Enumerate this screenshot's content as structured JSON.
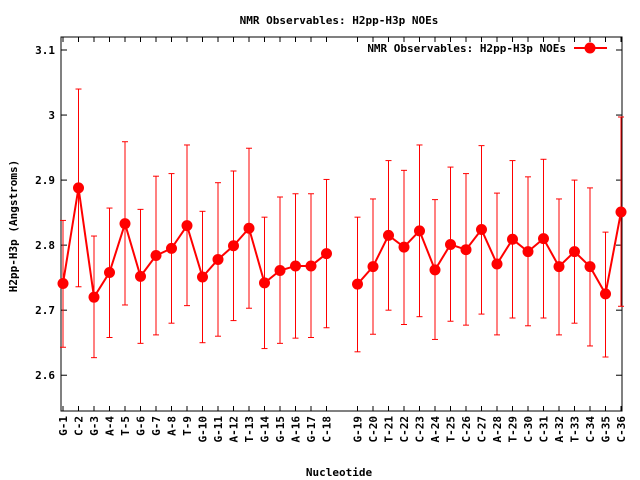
{
  "chart_data": {
    "type": "line",
    "title": "NMR Observables: H2pp-H3p NOEs",
    "xlabel": "Nucleotide",
    "ylabel": "H2pp-H3p (Angstroms)",
    "ylim": [
      2.545,
      3.12
    ],
    "y_ticks": [
      2.6,
      2.7,
      2.8,
      2.9,
      3,
      3.1
    ],
    "y_tick_labels": [
      "2.6",
      "2.7",
      "2.8",
      "2.9",
      "3",
      "3.1"
    ],
    "legend_position": "top-right",
    "grid": false,
    "error_bars": true,
    "series": [
      {
        "name": "NMR Observables: H2pp-H3p NOEs",
        "color": "#ff0000",
        "marker": "circle",
        "points": [
          {
            "x": 1,
            "label": "G-1",
            "y": 2.741,
            "low": 2.643,
            "high": 2.838
          },
          {
            "x": 2,
            "label": "C-2",
            "y": 2.888,
            "low": 2.736,
            "high": 3.04
          },
          {
            "x": 3,
            "label": "G-3",
            "y": 2.72,
            "low": 2.627,
            "high": 2.814
          },
          {
            "x": 4,
            "label": "A-4",
            "y": 2.758,
            "low": 2.658,
            "high": 2.857
          },
          {
            "x": 5,
            "label": "T-5",
            "y": 2.833,
            "low": 2.708,
            "high": 2.959
          },
          {
            "x": 6,
            "label": "G-6",
            "y": 2.752,
            "low": 2.649,
            "high": 2.855
          },
          {
            "x": 7,
            "label": "G-7",
            "y": 2.784,
            "low": 2.662,
            "high": 2.906
          },
          {
            "x": 8,
            "label": "A-8",
            "y": 2.795,
            "low": 2.68,
            "high": 2.91
          },
          {
            "x": 9,
            "label": "T-9",
            "y": 2.83,
            "low": 2.707,
            "high": 2.954
          },
          {
            "x": 10,
            "label": "G-10",
            "y": 2.751,
            "low": 2.65,
            "high": 2.852
          },
          {
            "x": 11,
            "label": "G-11",
            "y": 2.778,
            "low": 2.66,
            "high": 2.896
          },
          {
            "x": 12,
            "label": "A-12",
            "y": 2.799,
            "low": 2.684,
            "high": 2.914
          },
          {
            "x": 13,
            "label": "T-13",
            "y": 2.826,
            "low": 2.703,
            "high": 2.949
          },
          {
            "x": 14,
            "label": "G-14",
            "y": 2.742,
            "low": 2.641,
            "high": 2.843
          },
          {
            "x": 15,
            "label": "G-15",
            "y": 2.761,
            "low": 2.649,
            "high": 2.874
          },
          {
            "x": 16,
            "label": "A-16",
            "y": 2.768,
            "low": 2.657,
            "high": 2.879
          },
          {
            "x": 17,
            "label": "G-17",
            "y": 2.768,
            "low": 2.658,
            "high": 2.879
          },
          {
            "x": 18,
            "label": "C-18",
            "y": 2.787,
            "low": 2.673,
            "high": 2.901
          },
          {
            "x": 20,
            "label": "G-19",
            "y": 2.74,
            "low": 2.636,
            "high": 2.843
          },
          {
            "x": 21,
            "label": "C-20",
            "y": 2.767,
            "low": 2.663,
            "high": 2.871
          },
          {
            "x": 22,
            "label": "T-21",
            "y": 2.815,
            "low": 2.7,
            "high": 2.93
          },
          {
            "x": 23,
            "label": "C-22",
            "y": 2.797,
            "low": 2.678,
            "high": 2.915
          },
          {
            "x": 24,
            "label": "C-23",
            "y": 2.822,
            "low": 2.69,
            "high": 2.954
          },
          {
            "x": 25,
            "label": "A-24",
            "y": 2.762,
            "low": 2.655,
            "high": 2.87
          },
          {
            "x": 26,
            "label": "T-25",
            "y": 2.801,
            "low": 2.683,
            "high": 2.92
          },
          {
            "x": 27,
            "label": "C-26",
            "y": 2.793,
            "low": 2.677,
            "high": 2.91
          },
          {
            "x": 28,
            "label": "C-27",
            "y": 2.824,
            "low": 2.694,
            "high": 2.953
          },
          {
            "x": 29,
            "label": "A-28",
            "y": 2.771,
            "low": 2.662,
            "high": 2.88
          },
          {
            "x": 30,
            "label": "T-29",
            "y": 2.809,
            "low": 2.688,
            "high": 2.93
          },
          {
            "x": 31,
            "label": "C-30",
            "y": 2.79,
            "low": 2.676,
            "high": 2.905
          },
          {
            "x": 32,
            "label": "C-31",
            "y": 2.81,
            "low": 2.688,
            "high": 2.932
          },
          {
            "x": 33,
            "label": "A-32",
            "y": 2.767,
            "low": 2.662,
            "high": 2.871
          },
          {
            "x": 34,
            "label": "T-33",
            "y": 2.79,
            "low": 2.68,
            "high": 2.9
          },
          {
            "x": 35,
            "label": "C-34",
            "y": 2.767,
            "low": 2.645,
            "high": 2.888
          },
          {
            "x": 36,
            "label": "G-35",
            "y": 2.725,
            "low": 2.628,
            "high": 2.82
          },
          {
            "x": 37,
            "label": "C-36",
            "y": 2.851,
            "low": 2.706,
            "high": 2.997
          }
        ]
      }
    ]
  }
}
